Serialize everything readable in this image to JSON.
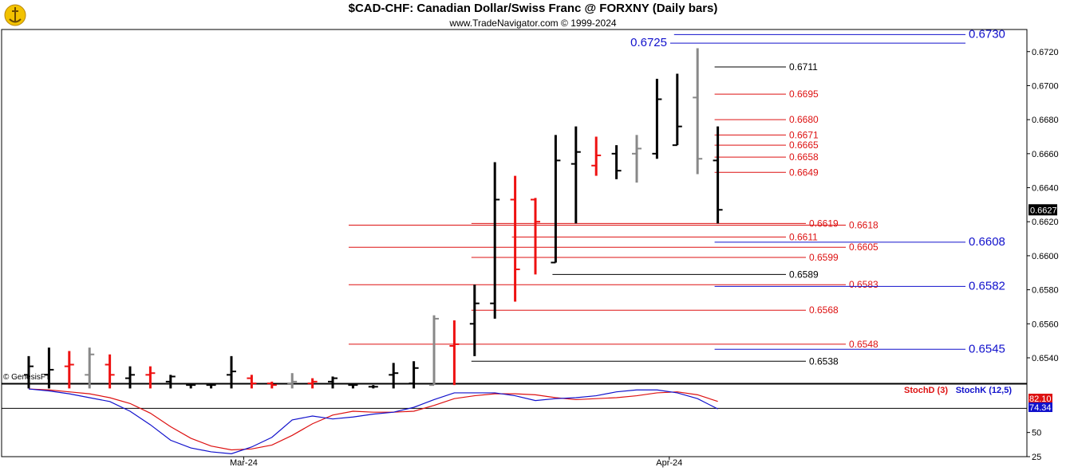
{
  "header": {
    "title": "$CAD-CHF:  Canadian Dollar/Swiss Franc @ FORXNY  (Daily bars)",
    "subtitle": "www.TradeNavigator.com © 1999-2024",
    "watermark": "© GenesisFT"
  },
  "colors": {
    "up_bar": "#000000",
    "down_bar": "#ee1111",
    "neutral_bar": "#888888",
    "red_level": "#dd1111",
    "blue_level": "#1111cc",
    "black_level": "#000000",
    "stoch_d": "#dd1111",
    "stoch_k": "#1111cc"
  },
  "chart_data": [
    {
      "type": "bar",
      "subtype": "ohlc",
      "ylim": [
        0.6525,
        0.6733
      ],
      "y_ticks": [
        "0.6540",
        "0.6560",
        "0.6580",
        "0.6600",
        "0.6620",
        "0.6640",
        "0.6660",
        "0.6680",
        "0.6700",
        "0.6720"
      ],
      "last_price": "0.6627",
      "x_labels": [
        {
          "label": "Mar-24",
          "bar": 11
        },
        {
          "label": "Apr-24",
          "bar": 32
        }
      ],
      "bars": [
        {
          "o": 0.653,
          "h": 0.6541,
          "l": 0.6522,
          "c": 0.6535,
          "color": "black"
        },
        {
          "o": 0.653,
          "h": 0.6546,
          "l": 0.6522,
          "c": 0.6533,
          "color": "black"
        },
        {
          "o": 0.6535,
          "h": 0.6544,
          "l": 0.6522,
          "c": 0.6536,
          "color": "red"
        },
        {
          "o": 0.653,
          "h": 0.6546,
          "l": 0.6522,
          "c": 0.6542,
          "color": "gray"
        },
        {
          "o": 0.6536,
          "h": 0.6542,
          "l": 0.6522,
          "c": 0.653,
          "color": "red"
        },
        {
          "o": 0.6528,
          "h": 0.6535,
          "l": 0.6522,
          "c": 0.653,
          "color": "black"
        },
        {
          "o": 0.653,
          "h": 0.6535,
          "l": 0.6522,
          "c": 0.6531,
          "color": "red"
        },
        {
          "o": 0.6526,
          "h": 0.653,
          "l": 0.6522,
          "c": 0.6529,
          "color": "black"
        },
        {
          "o": 0.6524,
          "h": 0.6525,
          "l": 0.6522,
          "c": 0.6524,
          "color": "black"
        },
        {
          "o": 0.6524,
          "h": 0.6524,
          "l": 0.6522,
          "c": 0.6524,
          "color": "black"
        },
        {
          "o": 0.653,
          "h": 0.6541,
          "l": 0.6522,
          "c": 0.6532,
          "color": "black"
        },
        {
          "o": 0.6528,
          "h": 0.653,
          "l": 0.6522,
          "c": 0.6525,
          "color": "red"
        },
        {
          "o": 0.6525,
          "h": 0.6526,
          "l": 0.6522,
          "c": 0.6524,
          "color": "red"
        },
        {
          "o": 0.6525,
          "h": 0.6531,
          "l": 0.6522,
          "c": 0.6526,
          "color": "gray"
        },
        {
          "o": 0.6525,
          "h": 0.6528,
          "l": 0.6522,
          "c": 0.6526,
          "color": "red"
        },
        {
          "o": 0.6526,
          "h": 0.6529,
          "l": 0.6522,
          "c": 0.6528,
          "color": "black"
        },
        {
          "o": 0.6524,
          "h": 0.6524,
          "l": 0.6522,
          "c": 0.6524,
          "color": "black"
        },
        {
          "o": 0.6523,
          "h": 0.6524,
          "l": 0.6522,
          "c": 0.6523,
          "color": "black"
        },
        {
          "o": 0.653,
          "h": 0.6537,
          "l": 0.6522,
          "c": 0.6531,
          "color": "black"
        },
        {
          "o": 0.6525,
          "h": 0.6538,
          "l": 0.6522,
          "c": 0.6534,
          "color": "black"
        },
        {
          "o": 0.6524,
          "h": 0.6565,
          "l": 0.6524,
          "c": 0.6563,
          "color": "gray"
        },
        {
          "o": 0.6547,
          "h": 0.6562,
          "l": 0.6524,
          "c": 0.6548,
          "color": "red"
        },
        {
          "o": 0.656,
          "h": 0.6583,
          "l": 0.6541,
          "c": 0.6572,
          "color": "black"
        },
        {
          "o": 0.6572,
          "h": 0.6655,
          "l": 0.6563,
          "c": 0.6633,
          "color": "black"
        },
        {
          "o": 0.6633,
          "h": 0.6647,
          "l": 0.6573,
          "c": 0.6592,
          "color": "red"
        },
        {
          "o": 0.6633,
          "h": 0.6634,
          "l": 0.6589,
          "c": 0.662,
          "color": "red"
        },
        {
          "o": 0.6596,
          "h": 0.6671,
          "l": 0.6596,
          "c": 0.6656,
          "color": "black"
        },
        {
          "o": 0.6654,
          "h": 0.6676,
          "l": 0.6619,
          "c": 0.6661,
          "color": "black"
        },
        {
          "o": 0.6653,
          "h": 0.667,
          "l": 0.6647,
          "c": 0.6659,
          "color": "red"
        },
        {
          "o": 0.666,
          "h": 0.6665,
          "l": 0.6645,
          "c": 0.665,
          "color": "black"
        },
        {
          "o": 0.666,
          "h": 0.6671,
          "l": 0.6643,
          "c": 0.6663,
          "color": "gray"
        },
        {
          "o": 0.666,
          "h": 0.6704,
          "l": 0.6657,
          "c": 0.6692,
          "color": "black"
        },
        {
          "o": 0.6665,
          "h": 0.6707,
          "l": 0.6665,
          "c": 0.6676,
          "color": "black"
        },
        {
          "o": 0.6693,
          "h": 0.6722,
          "l": 0.6648,
          "c": 0.6657,
          "color": "gray"
        },
        {
          "o": 0.6656,
          "h": 0.6676,
          "l": 0.6619,
          "c": 0.6627,
          "color": "black"
        }
      ],
      "levels": [
        {
          "value": 0.673,
          "label": "0.6730",
          "color": "blue",
          "from_bar": 32,
          "label_side": "right"
        },
        {
          "value": 0.6725,
          "label": "0.6725",
          "color": "blue",
          "from_bar": 32,
          "label_side": "left"
        },
        {
          "value": 0.6711,
          "label": "0.6711",
          "color": "black",
          "from_bar": 34,
          "label_side": "mid"
        },
        {
          "value": 0.6695,
          "label": "0.6695",
          "color": "red",
          "from_bar": 34,
          "label_side": "mid"
        },
        {
          "value": 0.668,
          "label": "0.6680",
          "color": "red",
          "from_bar": 34,
          "label_side": "mid"
        },
        {
          "value": 0.6671,
          "label": "0.6671",
          "color": "red",
          "from_bar": 34,
          "label_side": "mid"
        },
        {
          "value": 0.6665,
          "label": "0.6665",
          "color": "red",
          "from_bar": 34,
          "label_side": "mid"
        },
        {
          "value": 0.6658,
          "label": "0.6658",
          "color": "red",
          "from_bar": 34,
          "label_side": "mid"
        },
        {
          "value": 0.6649,
          "label": "0.6649",
          "color": "red",
          "from_bar": 34,
          "label_side": "mid"
        },
        {
          "value": 0.6619,
          "label": "0.6619",
          "color": "red",
          "from_bar": 22,
          "label_side": "mid2"
        },
        {
          "value": 0.6618,
          "label": "0.6618",
          "color": "red",
          "from_bar": 16,
          "label_side": "mid3"
        },
        {
          "value": 0.6611,
          "label": "0.6611",
          "color": "red",
          "from_bar": 24,
          "label_side": "mid"
        },
        {
          "value": 0.6608,
          "label": "0.6608",
          "color": "blue",
          "from_bar": 34,
          "label_side": "right"
        },
        {
          "value": 0.6605,
          "label": "0.6605",
          "color": "red",
          "from_bar": 16,
          "label_side": "mid3"
        },
        {
          "value": 0.6599,
          "label": "0.6599",
          "color": "red",
          "from_bar": 22,
          "label_side": "mid2"
        },
        {
          "value": 0.6589,
          "label": "0.6589",
          "color": "black",
          "from_bar": 26,
          "label_side": "mid"
        },
        {
          "value": 0.6583,
          "label": "0.6583",
          "color": "red",
          "from_bar": 16,
          "label_side": "mid3"
        },
        {
          "value": 0.6582,
          "label": "0.6582",
          "color": "blue",
          "from_bar": 34,
          "label_side": "right"
        },
        {
          "value": 0.6568,
          "label": "0.6568",
          "color": "red",
          "from_bar": 22,
          "label_side": "mid2"
        },
        {
          "value": 0.6548,
          "label": "0.6548",
          "color": "red",
          "from_bar": 16,
          "label_side": "mid3"
        },
        {
          "value": 0.6545,
          "label": "0.6545",
          "color": "blue",
          "from_bar": 34,
          "label_side": "right"
        },
        {
          "value": 0.6538,
          "label": "0.6538",
          "color": "black",
          "from_bar": 22,
          "label_side": "mid2"
        }
      ]
    },
    {
      "type": "line",
      "ylim": [
        25,
        100
      ],
      "y_ticks": [
        "50",
        "25"
      ],
      "reference_line": 75,
      "legend": [
        "StochD (3)",
        "StochK (12,5)"
      ],
      "legend_placement": "top-right",
      "last_values": {
        "d": "82.10",
        "k": "74.34"
      },
      "series": [
        {
          "name": "StochD (3)",
          "color": "red",
          "values": [
            95,
            94,
            92,
            90,
            86,
            80,
            70,
            56,
            44,
            36,
            32,
            33,
            37,
            47,
            59,
            68,
            72,
            71,
            71,
            72,
            78,
            85,
            88,
            90,
            90,
            89,
            86,
            84,
            85,
            86,
            88,
            91,
            92,
            89,
            82.1
          ]
        },
        {
          "name": "StochK (12,5)",
          "color": "blue",
          "values": [
            95,
            93,
            90,
            86,
            82,
            72,
            58,
            42,
            34,
            30,
            28,
            35,
            45,
            63,
            67,
            64,
            66,
            69,
            71,
            76,
            84,
            91,
            91,
            91,
            88,
            83,
            85,
            86,
            88,
            92,
            94,
            94,
            91,
            85,
            74.34
          ]
        }
      ]
    }
  ]
}
